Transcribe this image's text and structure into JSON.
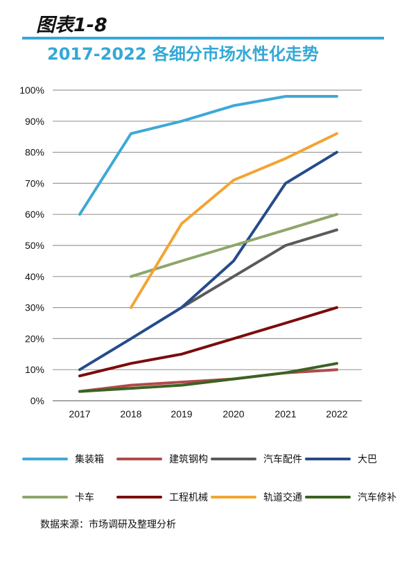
{
  "header": {
    "figure_label": "图表1-8",
    "title": "2017-2022 各细分市场水性化走势"
  },
  "source_note": "数据来源：市场调研及整理分析",
  "chart_data": {
    "type": "line",
    "categories": [
      "2017",
      "2018",
      "2019",
      "2020",
      "2021",
      "2022"
    ],
    "yticks": [
      "0%",
      "10%",
      "20%",
      "30%",
      "40%",
      "50%",
      "60%",
      "70%",
      "80%",
      "90%",
      "100%"
    ],
    "ylim": [
      0,
      100
    ],
    "grid": true,
    "legend_position": "bottom",
    "series": [
      {
        "name": "集装箱",
        "color": "#3ea9d6",
        "values": [
          60,
          86,
          90,
          95,
          98,
          98
        ]
      },
      {
        "name": "建筑钢构",
        "color": "#b14a4a",
        "values": [
          3,
          5,
          6,
          7,
          9,
          10
        ]
      },
      {
        "name": "汽车配件",
        "color": "#5a5a5a",
        "values": [
          null,
          null,
          30,
          40,
          50,
          55
        ]
      },
      {
        "name": "大巴",
        "color": "#264b8a",
        "values": [
          10,
          20,
          30,
          45,
          70,
          80
        ]
      },
      {
        "name": "卡车",
        "color": "#8ea66b",
        "values": [
          null,
          40,
          45,
          50,
          55,
          60
        ]
      },
      {
        "name": "工程机械",
        "color": "#7b0c0c",
        "values": [
          8,
          12,
          15,
          20,
          25,
          30
        ]
      },
      {
        "name": "轨道交通",
        "color": "#f2a532",
        "values": [
          null,
          30,
          57,
          71,
          78,
          86
        ]
      },
      {
        "name": "汽车修补",
        "color": "#3b6322",
        "values": [
          3,
          4,
          5,
          7,
          9,
          12
        ]
      }
    ]
  }
}
